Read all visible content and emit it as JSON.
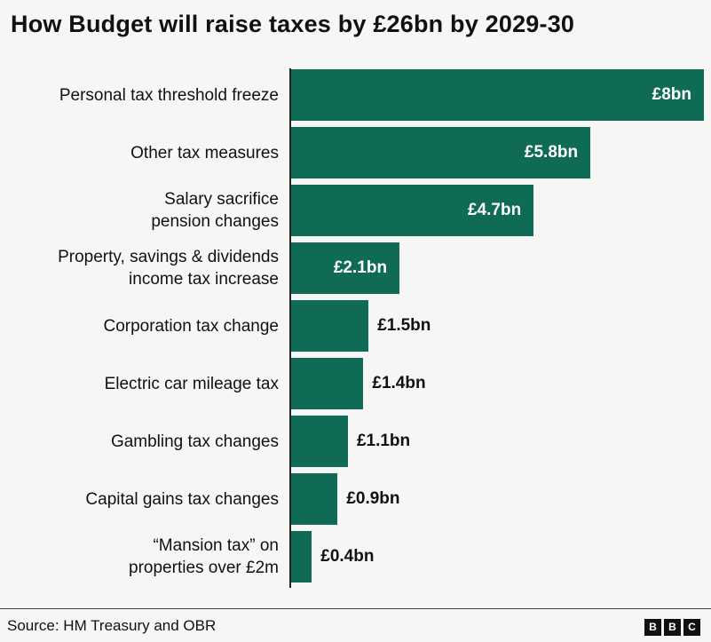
{
  "chart_data": {
    "type": "bar",
    "orientation": "horizontal",
    "title": "How Budget will raise taxes by £26bn by 2029-30",
    "categories": [
      "Personal tax threshold freeze",
      "Other tax measures",
      "Salary sacrifice pension changes",
      "Property, savings & dividends income tax increase",
      "Corporation tax change",
      "Electric car mileage tax",
      "Gambling tax changes",
      "Capital gains tax changes",
      "“Mansion tax” on properties over £2m"
    ],
    "category_lines": [
      [
        "Personal tax threshold freeze"
      ],
      [
        "Other tax measures"
      ],
      [
        "Salary sacrifice",
        "pension changes"
      ],
      [
        "Property, savings & dividends",
        "income tax increase"
      ],
      [
        "Corporation tax change"
      ],
      [
        "Electric car mileage tax"
      ],
      [
        "Gambling tax changes"
      ],
      [
        "Capital gains tax changes"
      ],
      [
        "“Mansion tax” on",
        "properties over £2m"
      ]
    ],
    "values": [
      8,
      5.8,
      4.7,
      2.1,
      1.5,
      1.4,
      1.1,
      0.9,
      0.4
    ],
    "data_labels": [
      "£8bn",
      "£5.8bn",
      "£4.7bn",
      "£2.1bn",
      "£1.5bn",
      "£1.4bn",
      "£1.1bn",
      "£0.9bn",
      "£0.4bn"
    ],
    "unit": "£bn",
    "xlim": [
      0,
      8
    ],
    "grid": false,
    "bar_color": "#0f6b55"
  },
  "footer": {
    "source": "Source: HM Treasury and OBR",
    "logo": [
      "B",
      "B",
      "C"
    ]
  }
}
